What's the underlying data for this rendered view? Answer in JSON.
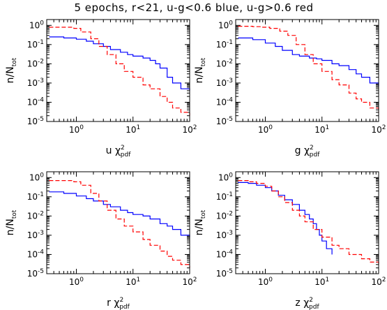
{
  "title": "5 epochs, r<21, u-g<0.6 blue, u-g>0.6 red",
  "colors": {
    "blue": "#0000ff",
    "red": "#ff0000",
    "axis": "#000000"
  },
  "chart_data": [
    {
      "type": "line",
      "band": "u",
      "xlabel": "u",
      "xlabel_symbol": "χ",
      "xlabel_sup": "2",
      "xlabel_sub": "pdf",
      "ylabel_main": "n/N",
      "ylabel_sub": "tot",
      "x_scale": "log",
      "y_scale": "log",
      "xlim": [
        0.3,
        100
      ],
      "ylim": [
        1e-05,
        2
      ],
      "x_ticks": [
        {
          "base": "10",
          "exp": "0",
          "value": 1
        },
        {
          "base": "10",
          "exp": "1",
          "value": 10
        },
        {
          "base": "10",
          "exp": "2",
          "value": 100
        }
      ],
      "y_ticks": [
        {
          "base": "10",
          "exp": "0",
          "value": 1
        },
        {
          "base": "10",
          "exp": "-1",
          "value": 0.1
        },
        {
          "base": "10",
          "exp": "-2",
          "value": 0.01
        },
        {
          "base": "10",
          "exp": "-3",
          "value": 0.001
        },
        {
          "base": "10",
          "exp": "-4",
          "value": 0.0001
        },
        {
          "base": "10",
          "exp": "-5",
          "value": 1e-05
        }
      ],
      "series": [
        {
          "color": "blue",
          "style": "solid",
          "x": [
            0.33,
            0.6,
            1.0,
            1.5,
            2.0,
            3.0,
            4.0,
            6.0,
            8.0,
            10,
            15,
            20,
            25,
            30,
            40,
            50,
            70,
            100
          ],
          "y": [
            0.25,
            0.22,
            0.19,
            0.15,
            0.11,
            0.08,
            0.055,
            0.04,
            0.03,
            0.025,
            0.02,
            0.015,
            0.01,
            0.006,
            0.002,
            0.001,
            0.0005,
            0.0004
          ]
        },
        {
          "color": "red",
          "style": "dashed",
          "x": [
            0.33,
            0.6,
            0.9,
            1.2,
            1.8,
            2.5,
            3.5,
            5.0,
            7.0,
            10,
            15,
            20,
            30,
            40,
            50,
            70,
            100
          ],
          "y": [
            0.8,
            0.8,
            0.7,
            0.45,
            0.2,
            0.08,
            0.03,
            0.01,
            0.004,
            0.002,
            0.0008,
            0.0005,
            0.0002,
            0.0001,
            5e-05,
            3e-05,
            2e-05
          ]
        }
      ]
    },
    {
      "type": "line",
      "band": "g",
      "xlabel": "g",
      "xlabel_symbol": "χ",
      "xlabel_sup": "2",
      "xlabel_sub": "pdf",
      "ylabel_main": "n/N",
      "ylabel_sub": "tot",
      "x_scale": "log",
      "y_scale": "log",
      "xlim": [
        0.3,
        100
      ],
      "ylim": [
        1e-05,
        2
      ],
      "x_ticks": [
        {
          "base": "10",
          "exp": "0",
          "value": 1
        },
        {
          "base": "10",
          "exp": "1",
          "value": 10
        },
        {
          "base": "10",
          "exp": "2",
          "value": 100
        }
      ],
      "y_ticks": [
        {
          "base": "10",
          "exp": "0",
          "value": 1
        },
        {
          "base": "10",
          "exp": "-1",
          "value": 0.1
        },
        {
          "base": "10",
          "exp": "-2",
          "value": 0.01
        },
        {
          "base": "10",
          "exp": "-3",
          "value": 0.001
        },
        {
          "base": "10",
          "exp": "-4",
          "value": 0.0001
        },
        {
          "base": "10",
          "exp": "-5",
          "value": 1e-05
        }
      ],
      "series": [
        {
          "color": "blue",
          "style": "solid",
          "x": [
            0.33,
            0.6,
            1.0,
            1.5,
            2.0,
            3.0,
            4.0,
            6.0,
            8.0,
            10,
            15,
            20,
            30,
            40,
            50,
            70,
            100
          ],
          "y": [
            0.22,
            0.18,
            0.12,
            0.08,
            0.05,
            0.03,
            0.025,
            0.02,
            0.018,
            0.015,
            0.01,
            0.008,
            0.005,
            0.003,
            0.002,
            0.001,
            0.0007
          ]
        },
        {
          "color": "red",
          "style": "dashed",
          "x": [
            0.33,
            0.6,
            0.9,
            1.2,
            1.8,
            2.5,
            3.5,
            5.0,
            7.0,
            10,
            15,
            20,
            30,
            40,
            50,
            70,
            100
          ],
          "y": [
            0.9,
            0.85,
            0.8,
            0.7,
            0.5,
            0.3,
            0.1,
            0.03,
            0.01,
            0.004,
            0.0015,
            0.0008,
            0.0003,
            0.00015,
            0.0001,
            5e-05,
            3e-05
          ]
        }
      ]
    },
    {
      "type": "line",
      "band": "r",
      "xlabel": "r",
      "xlabel_symbol": "χ",
      "xlabel_sup": "2",
      "xlabel_sub": "pdf",
      "ylabel_main": "n/N",
      "ylabel_sub": "tot",
      "x_scale": "log",
      "y_scale": "log",
      "xlim": [
        0.3,
        100
      ],
      "ylim": [
        1e-05,
        2
      ],
      "x_ticks": [
        {
          "base": "10",
          "exp": "0",
          "value": 1
        },
        {
          "base": "10",
          "exp": "1",
          "value": 10
        },
        {
          "base": "10",
          "exp": "2",
          "value": 100
        }
      ],
      "y_ticks": [
        {
          "base": "10",
          "exp": "0",
          "value": 1
        },
        {
          "base": "10",
          "exp": "-1",
          "value": 0.1
        },
        {
          "base": "10",
          "exp": "-2",
          "value": 0.01
        },
        {
          "base": "10",
          "exp": "-3",
          "value": 0.001
        },
        {
          "base": "10",
          "exp": "-4",
          "value": 0.0001
        },
        {
          "base": "10",
          "exp": "-5",
          "value": 1e-05
        }
      ],
      "series": [
        {
          "color": "blue",
          "style": "solid",
          "x": [
            0.33,
            0.6,
            1.0,
            1.5,
            2.0,
            3.0,
            4.0,
            6.0,
            8.0,
            10,
            15,
            20,
            30,
            40,
            50,
            70,
            100
          ],
          "y": [
            0.18,
            0.15,
            0.11,
            0.08,
            0.06,
            0.04,
            0.03,
            0.02,
            0.015,
            0.012,
            0.01,
            0.007,
            0.004,
            0.003,
            0.002,
            0.001,
            0.0008
          ]
        },
        {
          "color": "red",
          "style": "dashed",
          "x": [
            0.33,
            0.6,
            0.9,
            1.2,
            1.8,
            2.5,
            3.5,
            5.0,
            7.0,
            10,
            15,
            20,
            30,
            40,
            50,
            70,
            100
          ],
          "y": [
            0.7,
            0.7,
            0.6,
            0.4,
            0.15,
            0.06,
            0.02,
            0.007,
            0.003,
            0.0015,
            0.0006,
            0.0003,
            0.00015,
            8e-05,
            5e-05,
            3e-05,
            2e-05
          ]
        }
      ]
    },
    {
      "type": "line",
      "band": "z",
      "xlabel": "z",
      "xlabel_symbol": "χ",
      "xlabel_sup": "2",
      "xlabel_sub": "pdf",
      "ylabel_main": "n/N",
      "ylabel_sub": "tot",
      "x_scale": "log",
      "y_scale": "log",
      "xlim": [
        0.3,
        100
      ],
      "ylim": [
        1e-05,
        2
      ],
      "x_ticks": [
        {
          "base": "10",
          "exp": "0",
          "value": 1
        },
        {
          "base": "10",
          "exp": "1",
          "value": 10
        },
        {
          "base": "10",
          "exp": "2",
          "value": 100
        }
      ],
      "y_ticks": [
        {
          "base": "10",
          "exp": "0",
          "value": 1
        },
        {
          "base": "10",
          "exp": "-1",
          "value": 0.1
        },
        {
          "base": "10",
          "exp": "-2",
          "value": 0.01
        },
        {
          "base": "10",
          "exp": "-3",
          "value": 0.001
        },
        {
          "base": "10",
          "exp": "-4",
          "value": 0.0001
        },
        {
          "base": "10",
          "exp": "-5",
          "value": 1e-05
        }
      ],
      "series": [
        {
          "color": "blue",
          "style": "solid",
          "x": [
            0.33,
            0.5,
            0.7,
            1.0,
            1.3,
            1.7,
            2.2,
            3.0,
            4.0,
            5.0,
            6.0,
            7.0,
            8.0,
            9.0,
            10,
            12,
            15
          ],
          "y": [
            0.55,
            0.5,
            0.4,
            0.3,
            0.2,
            0.12,
            0.07,
            0.04,
            0.02,
            0.012,
            0.007,
            0.004,
            0.002,
            0.001,
            0.0005,
            0.0002,
            0.0001
          ]
        },
        {
          "color": "red",
          "style": "dashed",
          "x": [
            0.33,
            0.5,
            0.7,
            1.0,
            1.3,
            1.7,
            2.2,
            3.0,
            4.0,
            5.0,
            7.0,
            10,
            15,
            20,
            30,
            50,
            70,
            100
          ],
          "y": [
            0.7,
            0.6,
            0.5,
            0.35,
            0.2,
            0.1,
            0.05,
            0.02,
            0.01,
            0.005,
            0.002,
            0.0008,
            0.0003,
            0.0002,
            0.0001,
            6e-05,
            4e-05,
            3e-05
          ]
        }
      ]
    }
  ]
}
